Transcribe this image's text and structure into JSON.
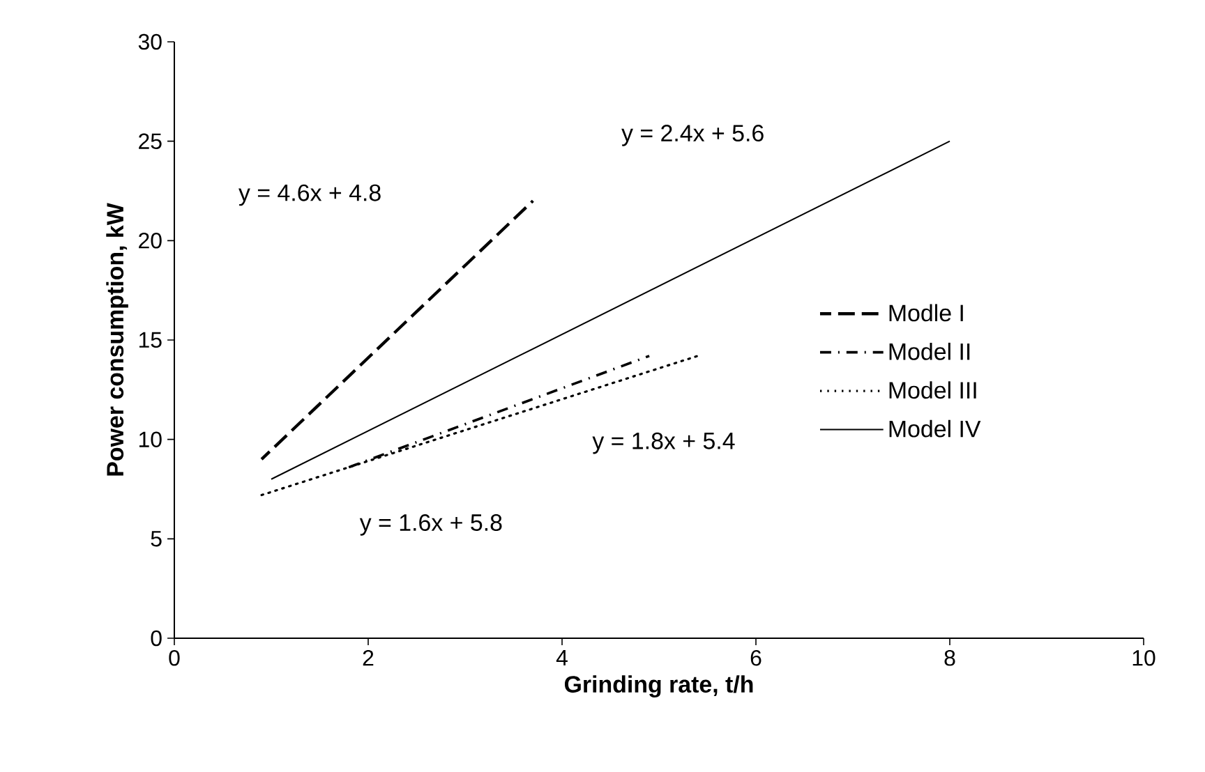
{
  "chart_data": {
    "type": "line",
    "xlabel": "Grinding rate, t/h",
    "ylabel": "Power consumption, kW",
    "xlim": [
      0,
      10
    ],
    "ylim": [
      0,
      30
    ],
    "xticks": [
      0,
      2,
      4,
      6,
      8,
      10
    ],
    "yticks": [
      0,
      5,
      10,
      15,
      20,
      25,
      30
    ],
    "grid": false,
    "legend": "right",
    "series": [
      {
        "name": "Modle I",
        "color": "#000000",
        "line_style": "dashed",
        "x": [
          0.9,
          3.7
        ],
        "values": [
          9,
          22
        ]
      },
      {
        "name": "Model II",
        "color": "#000000",
        "line_style": "dashdot",
        "x": [
          1.8,
          4.9
        ],
        "values": [
          8.6,
          14.2
        ]
      },
      {
        "name": "Model III",
        "color": "#000000",
        "line_style": "dotted",
        "x": [
          0.9,
          5.4
        ],
        "values": [
          7.2,
          14.2
        ]
      },
      {
        "name": "Model IV",
        "color": "#000000",
        "line_style": "solid",
        "x": [
          1,
          8
        ],
        "values": [
          8,
          25
        ]
      }
    ],
    "annotations": [
      "y = 4.6x + 4.8",
      "y = 2.4x + 5.6",
      "y = 1.8x + 5.4",
      "y = 1.6x + 5.8"
    ]
  }
}
